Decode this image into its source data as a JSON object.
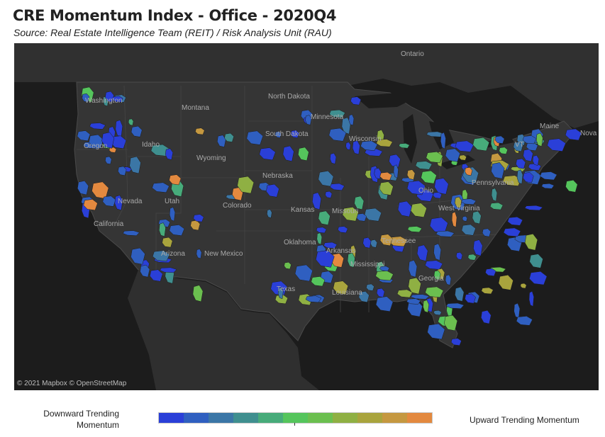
{
  "title": "CRE Momentum Index - Office - 2020Q4",
  "subtitle": "Source: Real Estate Intelligence Team (REIT) / Risk Analysis Unit (RAU)",
  "map": {
    "attribution": "© 2021 Mapbox © OpenStreetMap",
    "background_color": "#262626",
    "land_color": "#333333",
    "water_color": "#1c1c1c",
    "labels": [
      "Ontario",
      "North Dakota",
      "Minnesota",
      "Montana",
      "South Dakota",
      "Wisconsin",
      "Idaho",
      "Oregon",
      "Wyoming",
      "Nebraska",
      "Nevada",
      "Utah",
      "Colorado",
      "Kansas",
      "Missouri",
      "California",
      "Arizona",
      "New Mexico",
      "Oklahoma",
      "Arkansas",
      "Tennessee",
      "Texas",
      "Mississippi",
      "Louisiana",
      "Georgia",
      "Maine",
      "Nova",
      "Pennsylvania",
      "West Virginia",
      "Ohio",
      "Washington",
      "VT"
    ]
  },
  "legend": {
    "low_label": "Downward Trending Momentum",
    "high_label": "Upward Trending Momentum",
    "colors": [
      "#2a3fd8",
      "#2f5fc0",
      "#3b76a6",
      "#3f8f8f",
      "#47ab7a",
      "#55c55c",
      "#6bbf4f",
      "#8fb043",
      "#a9a43d",
      "#c59840",
      "#e3893f"
    ]
  }
}
